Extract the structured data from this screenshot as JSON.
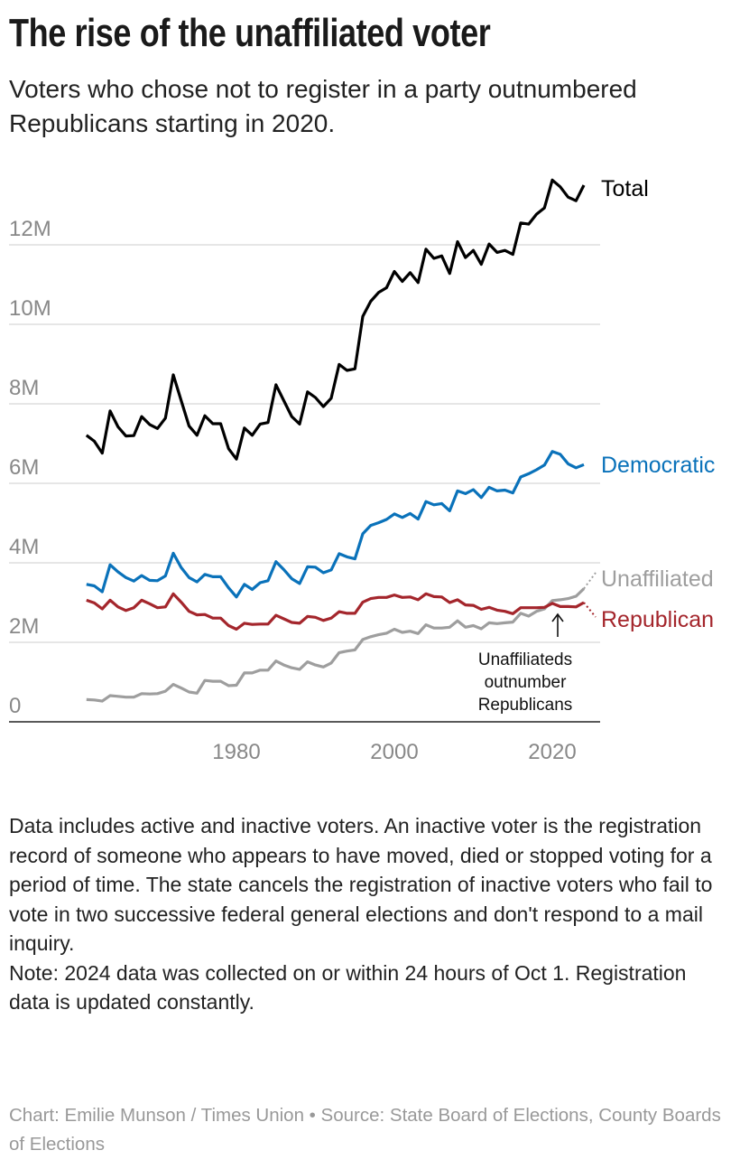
{
  "title": "The rise of the unaffiliated voter",
  "subtitle": "Voters who chose not to register in a party outnumbered Republicans starting in 2020.",
  "notes": [
    "Data includes active and inactive voters. An inactive voter is the registration record of someone who appears to have moved, died or stopped voting for a period of time. The state cancels the registration of inactive voters who fail to vote in two successive federal general elections and don't respond to a mail inquiry.",
    "Note: 2024 data was collected on or within 24 hours of Oct 1. Registration data is updated constantly."
  ],
  "credit": "Chart: Emilie Munson / Times Union • Source: State Board of Elections, County Boards of Elections",
  "chart_data": {
    "type": "line",
    "xlim": [
      1961,
      2024
    ],
    "ylim": [
      0,
      14
    ],
    "x_ticks": [
      1980,
      2000,
      2020
    ],
    "y_ticks": [
      0,
      2,
      4,
      6,
      8,
      10,
      12
    ],
    "y_tick_labels": [
      "0",
      "2M",
      "4M",
      "6M",
      "8M",
      "10M",
      "12M"
    ],
    "grid": true,
    "x_start": 1961,
    "series": [
      {
        "name": "Total",
        "color": "#000000",
        "dotted_tail": false,
        "values": [
          7.21,
          7.06,
          6.76,
          7.82,
          7.42,
          7.19,
          7.2,
          7.68,
          7.48,
          7.38,
          7.64,
          8.73,
          8.08,
          7.44,
          7.21,
          7.7,
          7.5,
          7.5,
          6.87,
          6.61,
          7.39,
          7.21,
          7.49,
          7.53,
          8.48,
          8.08,
          7.68,
          7.49,
          8.3,
          8.16,
          7.93,
          8.14,
          8.99,
          8.84,
          8.88,
          10.2,
          10.58,
          10.8,
          10.92,
          11.33,
          11.08,
          11.3,
          11.05,
          11.89,
          11.66,
          11.72,
          11.28,
          12.08,
          11.68,
          11.86,
          11.51,
          12.02,
          11.81,
          11.86,
          11.76,
          12.55,
          12.52,
          12.77,
          12.93,
          13.63,
          13.46,
          13.2,
          13.11,
          13.5
        ]
      },
      {
        "name": "Democratic",
        "color": "#0a72ba",
        "dotted_tail": false,
        "values": [
          3.46,
          3.42,
          3.27,
          3.95,
          3.77,
          3.63,
          3.54,
          3.68,
          3.56,
          3.55,
          3.67,
          4.24,
          3.88,
          3.63,
          3.52,
          3.71,
          3.65,
          3.65,
          3.37,
          3.14,
          3.46,
          3.33,
          3.5,
          3.55,
          4.03,
          3.83,
          3.6,
          3.48,
          3.9,
          3.89,
          3.75,
          3.82,
          4.23,
          4.15,
          4.1,
          4.73,
          4.94,
          5.01,
          5.09,
          5.23,
          5.14,
          5.24,
          5.1,
          5.54,
          5.46,
          5.49,
          5.31,
          5.81,
          5.74,
          5.84,
          5.64,
          5.9,
          5.81,
          5.83,
          5.76,
          6.16,
          6.24,
          6.34,
          6.46,
          6.8,
          6.73,
          6.49,
          6.39,
          6.47
        ]
      },
      {
        "name": "Unaffiliated",
        "color": "#9e9e9e",
        "dotted_tail": true,
        "values": [
          0.56,
          0.55,
          0.52,
          0.66,
          0.64,
          0.62,
          0.62,
          0.71,
          0.7,
          0.71,
          0.77,
          0.94,
          0.85,
          0.75,
          0.72,
          1.04,
          1.02,
          1.02,
          0.91,
          0.92,
          1.23,
          1.23,
          1.3,
          1.3,
          1.53,
          1.43,
          1.36,
          1.32,
          1.51,
          1.43,
          1.38,
          1.48,
          1.74,
          1.78,
          1.81,
          2.07,
          2.14,
          2.19,
          2.23,
          2.33,
          2.25,
          2.28,
          2.22,
          2.44,
          2.36,
          2.36,
          2.38,
          2.54,
          2.38,
          2.42,
          2.34,
          2.49,
          2.47,
          2.49,
          2.51,
          2.73,
          2.66,
          2.78,
          2.84,
          3.05,
          3.07,
          3.1,
          3.16,
          3.35
        ]
      },
      {
        "name": "Republican",
        "color": "#a4262c",
        "dotted_tail": true,
        "values": [
          3.06,
          2.99,
          2.84,
          3.06,
          2.89,
          2.8,
          2.87,
          3.06,
          2.97,
          2.87,
          2.89,
          3.22,
          3.01,
          2.78,
          2.69,
          2.7,
          2.61,
          2.61,
          2.42,
          2.33,
          2.48,
          2.45,
          2.46,
          2.46,
          2.68,
          2.59,
          2.5,
          2.48,
          2.65,
          2.63,
          2.55,
          2.61,
          2.77,
          2.73,
          2.73,
          3.01,
          3.1,
          3.13,
          3.13,
          3.19,
          3.13,
          3.14,
          3.07,
          3.22,
          3.15,
          3.14,
          3.0,
          3.07,
          2.94,
          2.93,
          2.83,
          2.88,
          2.81,
          2.78,
          2.72,
          2.87,
          2.87,
          2.87,
          2.88,
          2.98,
          2.9,
          2.9,
          2.89,
          3.0
        ]
      }
    ],
    "annotation": {
      "x": 2020,
      "lines": [
        "Unaffiliateds",
        "outnumber",
        "Republicans"
      ]
    }
  }
}
